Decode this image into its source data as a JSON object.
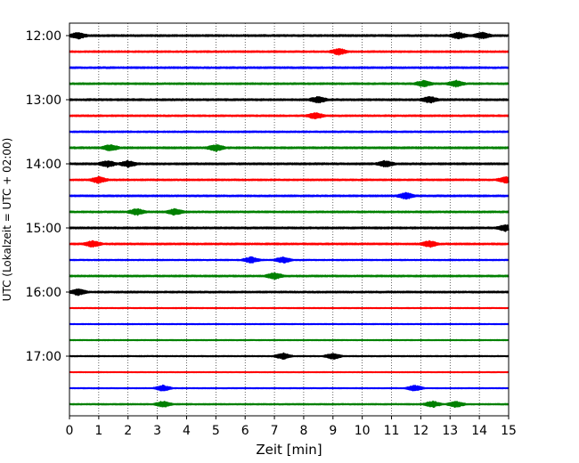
{
  "chart_data": {
    "type": "line",
    "title": "",
    "xlabel": "Zeit  [min]",
    "ylabel": "UTC (Lokalzeit = UTC + 02:00)",
    "xlim": [
      0,
      15
    ],
    "x_ticks": [
      0,
      1,
      2,
      3,
      4,
      5,
      6,
      7,
      8,
      9,
      10,
      11,
      12,
      13,
      14,
      15
    ],
    "x_tick_labels": [
      "0",
      "1",
      "2",
      "3",
      "4",
      "5",
      "6",
      "7",
      "8",
      "9",
      "10",
      "11",
      "12",
      "13",
      "14",
      "15"
    ],
    "y_tick_labels": [
      "12:00",
      "13:00",
      "14:00",
      "15:00",
      "16:00",
      "17:00"
    ],
    "y_tick_rows": [
      0,
      4,
      8,
      12,
      16,
      20
    ],
    "trace_interval_minutes": 15,
    "first_trace_start": "12:00",
    "trace_colors": [
      "#000000",
      "#ff0000",
      "#0000ff",
      "#008000"
    ],
    "grid": {
      "x": "dotted vertical at each minute",
      "y": "none"
    },
    "traces": [
      {
        "start": "12:00",
        "color": "#000000",
        "amplitude": 0.9,
        "bursts": [
          0.3,
          13.3,
          14.1
        ]
      },
      {
        "start": "12:15",
        "color": "#ff0000",
        "amplitude": 0.75,
        "bursts": [
          9.2
        ]
      },
      {
        "start": "12:30",
        "color": "#0000ff",
        "amplitude": 0.8,
        "bursts": []
      },
      {
        "start": "12:45",
        "color": "#008000",
        "amplitude": 0.8,
        "bursts": [
          12.1,
          13.2
        ]
      },
      {
        "start": "13:00",
        "color": "#000000",
        "amplitude": 0.9,
        "bursts": [
          8.5,
          12.3
        ]
      },
      {
        "start": "13:15",
        "color": "#ff0000",
        "amplitude": 0.75,
        "bursts": [
          8.4
        ]
      },
      {
        "start": "13:30",
        "color": "#0000ff",
        "amplitude": 0.7,
        "bursts": []
      },
      {
        "start": "13:45",
        "color": "#008000",
        "amplitude": 0.9,
        "bursts": [
          1.4,
          5.0
        ]
      },
      {
        "start": "14:00",
        "color": "#000000",
        "amplitude": 0.9,
        "bursts": [
          1.3,
          2.0,
          10.8
        ]
      },
      {
        "start": "14:15",
        "color": "#ff0000",
        "amplitude": 0.75,
        "bursts": [
          1.0,
          14.9
        ]
      },
      {
        "start": "14:30",
        "color": "#0000ff",
        "amplitude": 0.8,
        "bursts": [
          11.5
        ]
      },
      {
        "start": "14:45",
        "color": "#008000",
        "amplitude": 0.8,
        "bursts": [
          2.3,
          3.6
        ]
      },
      {
        "start": "15:00",
        "color": "#000000",
        "amplitude": 0.9,
        "bursts": [
          14.9
        ]
      },
      {
        "start": "15:15",
        "color": "#ff0000",
        "amplitude": 0.8,
        "bursts": [
          0.8,
          12.3
        ]
      },
      {
        "start": "15:30",
        "color": "#0000ff",
        "amplitude": 0.55,
        "bursts": [
          6.2,
          7.3
        ]
      },
      {
        "start": "15:45",
        "color": "#008000",
        "amplitude": 0.8,
        "bursts": [
          7.0
        ]
      },
      {
        "start": "16:00",
        "color": "#000000",
        "amplitude": 0.8,
        "bursts": [
          0.3
        ]
      },
      {
        "start": "16:15",
        "color": "#ff0000",
        "amplitude": 0.45,
        "bursts": []
      },
      {
        "start": "16:30",
        "color": "#0000ff",
        "amplitude": 0.45,
        "bursts": []
      },
      {
        "start": "16:45",
        "color": "#008000",
        "amplitude": 0.45,
        "bursts": []
      },
      {
        "start": "17:00",
        "color": "#000000",
        "amplitude": 0.5,
        "bursts": [
          7.3,
          9.0
        ]
      },
      {
        "start": "17:15",
        "color": "#ff0000",
        "amplitude": 0.4,
        "bursts": []
      },
      {
        "start": "17:30",
        "color": "#0000ff",
        "amplitude": 0.45,
        "bursts": [
          3.2,
          11.8
        ]
      },
      {
        "start": "17:45",
        "color": "#008000",
        "amplitude": 0.6,
        "bursts": [
          3.2,
          12.4,
          13.2
        ]
      }
    ]
  }
}
